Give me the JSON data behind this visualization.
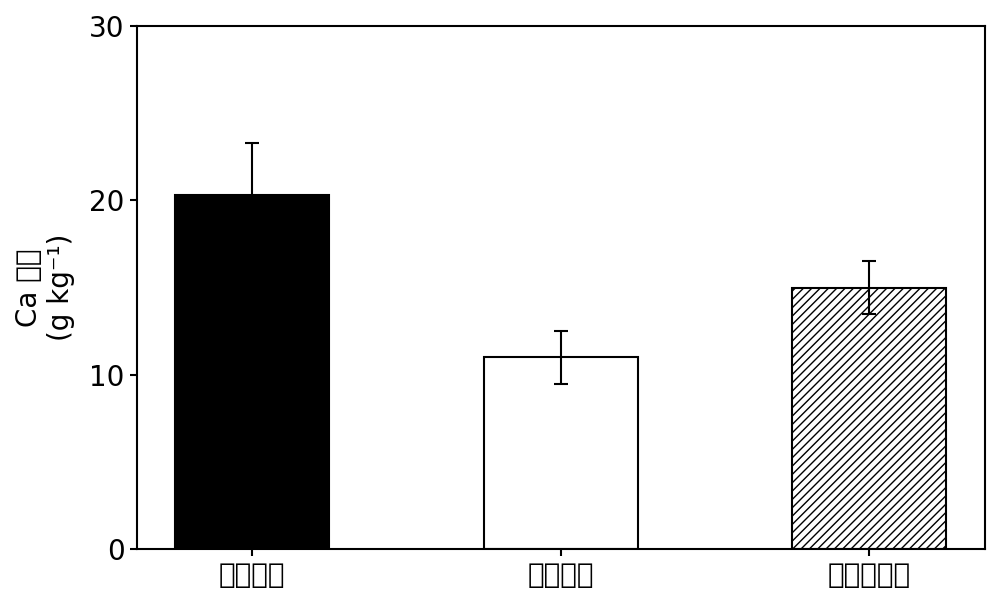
{
  "categories": [
    "健康植株",
    "发病植株",
    "治理后植株"
  ],
  "values": [
    20.3,
    11.0,
    15.0
  ],
  "errors": [
    3.0,
    1.5,
    1.5
  ],
  "bar_colors": [
    "black",
    "white",
    "white"
  ],
  "bar_edgecolors": [
    "black",
    "black",
    "black"
  ],
  "hatch_patterns": [
    "",
    "",
    "////"
  ],
  "ylabel_line1": "Ca 含量",
  "ylabel_line2": "(g kg⁻¹)",
  "ylim": [
    0,
    30
  ],
  "yticks": [
    0,
    10,
    20,
    30
  ],
  "bar_width": 0.5,
  "figsize": [
    10.0,
    6.04
  ],
  "dpi": 100,
  "tick_fontsize": 20,
  "label_fontsize": 20,
  "xlabel_fontsize": 20,
  "capsize": 5,
  "elinewidth": 1.5,
  "ecapthick": 1.5,
  "spine_linewidth": 1.5
}
